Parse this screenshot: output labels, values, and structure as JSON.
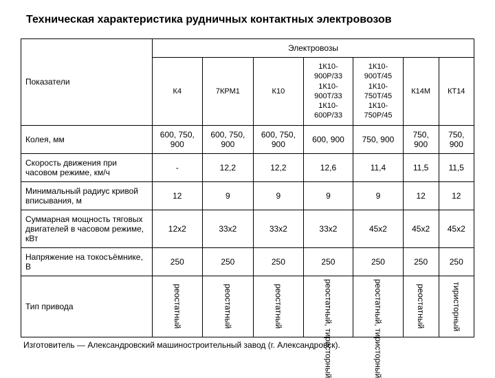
{
  "title": "Техническая характеристика рудничных контактных электровозов",
  "header": {
    "group": "Электровозы",
    "param": "Показатели",
    "cols": [
      "К4",
      "7КРМ1",
      "К10",
      "1К10-900Р/33\n1К10-900Т/33\n1К10-600Р/33",
      "1К10-900Т/45\n1К10-750Т/45\n1К10-750Р/45",
      "К14М",
      "КТ14"
    ]
  },
  "rows": [
    {
      "label": "Колея, мм",
      "vals": [
        "600, 750, 900",
        "600, 750, 900",
        "600, 750, 900",
        "600, 900",
        "750, 900",
        "750, 900",
        "750, 900"
      ]
    },
    {
      "label": "Скорость движения при часовом режиме, км/ч",
      "vals": [
        "-",
        "12,2",
        "12,2",
        "12,6",
        "11,4",
        "11,5",
        "11,5"
      ]
    },
    {
      "label": "Минимальный радиус кривой вписывания, м",
      "vals": [
        "12",
        "9",
        "9",
        "9",
        "9",
        "12",
        "12"
      ]
    },
    {
      "label": "Суммарная мощность тяговых двигателей в часовом режиме, кВт",
      "vals": [
        "12х2",
        "33х2",
        "33х2",
        "33х2",
        "45х2",
        "45х2",
        "45х2"
      ]
    },
    {
      "label": "Напряжение на токосъёмнике, В",
      "vals": [
        "250",
        "250",
        "250",
        "250",
        "250",
        "250",
        "250"
      ]
    }
  ],
  "drive": {
    "label": "Тип привода",
    "vals": [
      "реостатный",
      "реостатный",
      "реостатный",
      "реостатный, тиристорный",
      "реостатный, тиристорный",
      "реостатный",
      "тиристорный"
    ]
  },
  "footer": "Изготовитель — Александровский машиностроительный завод (г. Александровск)."
}
